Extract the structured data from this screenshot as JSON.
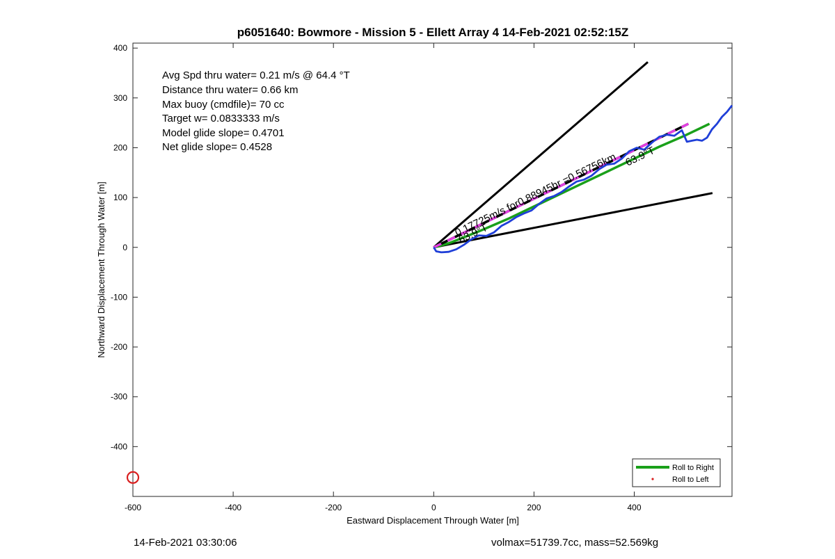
{
  "chart_data": {
    "type": "line",
    "title": "p6051640: Bowmore - Mission 5 - Ellett Array 4 14-Feb-2021 02:52:15Z",
    "xlabel": "Eastward Displacement Through Water [m]",
    "ylabel": "Northward Displacement Through Water [m]",
    "xlim": [
      -600,
      595
    ],
    "ylim": [
      -500,
      410
    ],
    "xticks": [
      -600,
      -400,
      -200,
      0,
      200,
      400
    ],
    "yticks": [
      -400,
      -300,
      -200,
      -100,
      0,
      100,
      200,
      300,
      400
    ],
    "xtick_labels": [
      "-600",
      "-400",
      "-200",
      "0",
      "200",
      "400"
    ],
    "ytick_labels": [
      "-400",
      "-300",
      "-200",
      "-100",
      "0",
      "100",
      "200",
      "300",
      "400"
    ],
    "grid": false,
    "legend_position": "bottom-right",
    "legend": [
      "Roll to Right",
      "Roll to Left"
    ],
    "annotations": [
      "Avg Spd thru water=  0.21 m/s @  64.4 °T",
      "Distance thru water=  0.66 km",
      "Max buoy (cmdfile)= 70 cc",
      "Target w= 0.0833333 m/s",
      "Model glide slope= 0.4701",
      "Net glide slope= 0.4528"
    ],
    "line_labels": {
      "speed": "0.17725m/s for0.88945hr =0.56756km",
      "heading_upper": "63.9°T",
      "heading_lower": "63.9°T"
    },
    "series": [
      {
        "role": "cone-upper",
        "color": "#000000",
        "x": [
          0,
          427
        ],
        "y": [
          0,
          372
        ]
      },
      {
        "role": "cone-lower",
        "color": "#000000",
        "x": [
          0,
          556
        ],
        "y": [
          0,
          109
        ]
      },
      {
        "role": "mean-track",
        "color": "#e23fe0",
        "x": [
          0,
          508
        ],
        "y": [
          0,
          248
        ]
      },
      {
        "role": "roll-to-right",
        "color": "#1aa01a",
        "x": [
          0,
          30,
          60,
          90,
          120,
          150,
          200,
          250,
          300,
          350,
          400,
          450,
          500,
          550
        ],
        "y": [
          0,
          8,
          20,
          32,
          45,
          58,
          82,
          106,
          130,
          154,
          178,
          202,
          224,
          248
        ]
      },
      {
        "role": "track",
        "color": "#1f3fd8",
        "x": [
          0,
          5,
          15,
          30,
          45,
          60,
          75,
          90,
          105,
          120,
          135,
          150,
          165,
          180,
          195,
          210,
          225,
          240,
          255,
          270,
          285,
          300,
          315,
          330,
          345,
          360,
          375,
          390,
          405,
          420,
          435,
          450,
          465,
          480,
          495,
          505,
          515,
          525,
          535,
          545,
          555,
          565,
          575,
          585,
          595
        ],
        "y": [
          0,
          -8,
          -10,
          -9,
          -4,
          5,
          16,
          24,
          23,
          30,
          43,
          51,
          61,
          68,
          74,
          87,
          98,
          103,
          111,
          122,
          132,
          136,
          144,
          157,
          166,
          168,
          178,
          193,
          200,
          196,
          210,
          222,
          226,
          224,
          235,
          212,
          214,
          216,
          214,
          220,
          237,
          248,
          262,
          272,
          285
        ]
      },
      {
        "role": "start-marker",
        "color": "#d91f1f",
        "x": [
          -600
        ],
        "y": [
          -462
        ]
      }
    ]
  },
  "footer": {
    "left": "14-Feb-2021 03:30:06",
    "right": "volmax=51739.7cc, mass=52.569kg"
  }
}
